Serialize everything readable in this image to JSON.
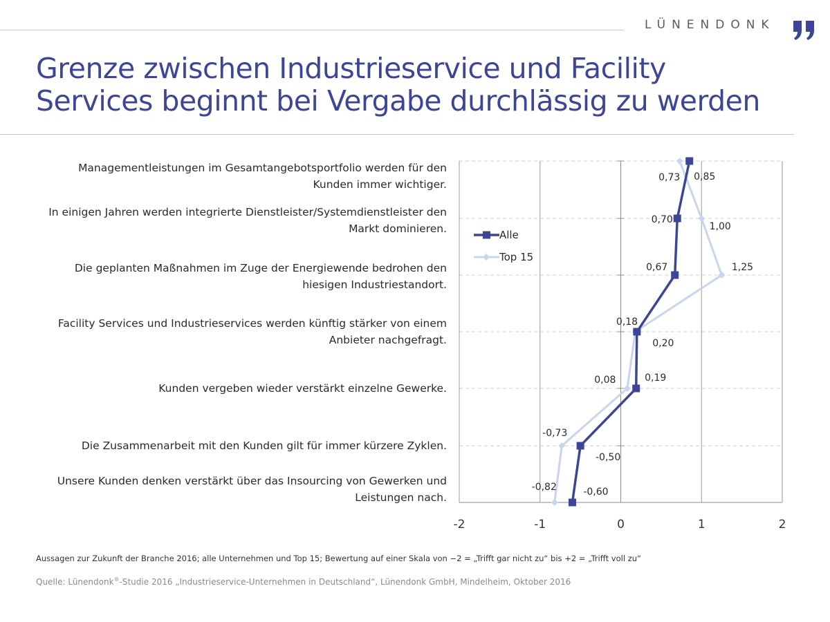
{
  "header": {
    "brand": "LÜNENDONK",
    "title_line1": "Grenze zwischen Industrieservice und Facility",
    "title_line2": "Services beginnt bei Vergabe durchlässig zu werden"
  },
  "statements": [
    {
      "line1": "Managementleistungen im Gesamtangebotsportfolio werden für den",
      "line2": "Kunden immer wichtiger."
    },
    {
      "line1": "In einigen Jahren werden integrierte Dienstleister/Systemdienstleister den",
      "line2": "Markt dominieren."
    },
    {
      "line1": "Die geplanten Maßnahmen im Zuge der Energiewende bedrohen den",
      "line2": "hiesigen Industriestandort."
    },
    {
      "line1": "Facility Services und Industrieservices werden künftig stärker von einem",
      "line2": "Anbieter nachgefragt."
    },
    {
      "line1": "Kunden vergeben wieder verstärkt einzelne Gewerke.",
      "line2": ""
    },
    {
      "line1": "Die Zusammenarbeit mit den Kunden gilt für immer kürzere Zyklen.",
      "line2": ""
    },
    {
      "line1": "Unsere Kunden denken verstärkt über das Insourcing von Gewerken und",
      "line2": "Leistungen nach."
    }
  ],
  "chart_data": {
    "type": "line",
    "orientation": "horizontal",
    "categories": [
      "Managementleistungen im Gesamtangebotsportfolio werden für den Kunden immer wichtiger.",
      "In einigen Jahren werden integrierte Dienstleister/Systemdienstleister den Markt dominieren.",
      "Die geplanten Maßnahmen im Zuge der Energiewende bedrohen den hiesigen Industriestandort.",
      "Facility Services und Industrieservices werden künftig stärker von einem Anbieter nachgefragt.",
      "Kunden vergeben wieder verstärkt einzelne Gewerke.",
      "Die Zusammenarbeit mit den Kunden gilt für immer kürzere Zyklen.",
      "Unsere Kunden denken verstärkt über das Insourcing von Gewerken und Leistungen nach."
    ],
    "series": [
      {
        "name": "Alle",
        "values": [
          0.85,
          0.7,
          0.67,
          0.2,
          0.19,
          -0.5,
          -0.6
        ],
        "labels": [
          "0,85",
          "0,70",
          "0,67",
          "0,20",
          "0,19",
          "-0,50",
          "-0,60"
        ],
        "color": "#3c4596",
        "marker": "square"
      },
      {
        "name": "Top 15",
        "values": [
          0.73,
          1.0,
          1.25,
          0.18,
          0.08,
          -0.73,
          -0.82
        ],
        "labels": [
          "0,73",
          "1,00",
          "1,25",
          "0,18",
          "0,08",
          "-0,73",
          "-0,82"
        ],
        "color": "#c9d5ee",
        "marker": "diamond"
      }
    ],
    "xlim": [
      -2,
      2
    ],
    "xticks": [
      -2,
      -1,
      0,
      1,
      2
    ],
    "xtick_labels": [
      "-2",
      "-1",
      "0",
      "1",
      "2"
    ],
    "grid": "vertical solid, horizontal dashed",
    "legend_position": "top-left"
  },
  "footnote": "Aussagen zur Zukunft der Branche 2016; alle Unternehmen und Top 15; Bewertung auf einer Skala von −2 = „Trifft gar nicht zu“ bis +2 = „Trifft voll zu“",
  "source": {
    "prefix": "Quelle: Lünendonk",
    "registered": "®",
    "suffix": "-Studie 2016 „Industrieservice-Unternehmen in Deutschland“, Lünendonk GmbH, Mindelheim, Oktober 2016"
  }
}
